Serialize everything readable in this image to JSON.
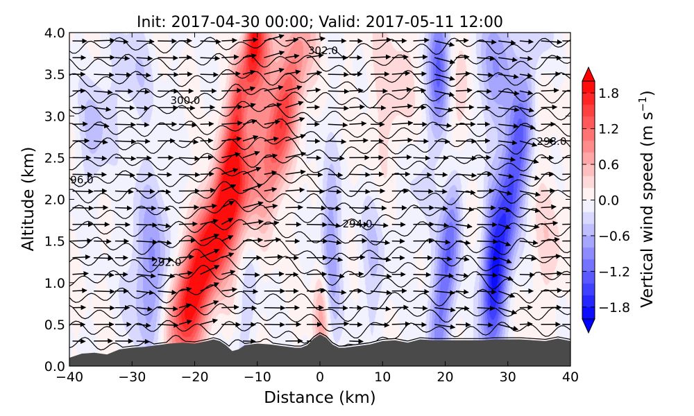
{
  "chart_data": {
    "type": "heatmap",
    "title": "Init: 2017-04-30 00:00; Valid: 2017-05-11 12:00",
    "xlabel": "Distance (km)",
    "ylabel": "Altitude (km)",
    "xlim": [
      -40,
      40
    ],
    "ylim": [
      0,
      4
    ],
    "xticks": [
      -40,
      -30,
      -20,
      -10,
      0,
      10,
      20,
      30,
      40
    ],
    "xtick_labels": [
      "−40",
      "−30",
      "−20",
      "−10",
      "0",
      "10",
      "20",
      "30",
      "40"
    ],
    "yticks": [
      0,
      0.5,
      1.0,
      1.5,
      2.0,
      2.5,
      3.0,
      3.5,
      4.0
    ],
    "ytick_labels": [
      "0.0",
      "0.5",
      "1.0",
      "1.5",
      "2.0",
      "2.5",
      "3.0",
      "3.5",
      "4.0"
    ],
    "colorbar": {
      "label_main": "Vertical wind speed (m s",
      "label_exp": "−1",
      "label_close": ")",
      "range": [
        -2.0,
        2.0
      ],
      "ticks": [
        -1.8,
        -1.2,
        -0.6,
        0.0,
        0.6,
        1.2,
        1.8
      ],
      "tick_labels": [
        "−1.8",
        "−1.2",
        "−0.6",
        "0.0",
        "0.6",
        "1.2",
        "1.8"
      ],
      "colors": {
        "negative": "#0000ff",
        "neutral": "#ffffff",
        "positive": "#ff0000"
      }
    },
    "terrain": {
      "color": "#4a4a4a",
      "x": [
        -40,
        -38,
        -36,
        -34,
        -32,
        -30,
        -28,
        -26,
        -24,
        -22,
        -20,
        -18,
        -17,
        -16,
        -15,
        -14,
        -13,
        -12,
        -10,
        -8,
        -6,
        -4,
        -3,
        -2,
        -1,
        0,
        1,
        2,
        3,
        4,
        6,
        8,
        10,
        12,
        14,
        16,
        18,
        20,
        22,
        24,
        26,
        28,
        30,
        32,
        34,
        36,
        38,
        40
      ],
      "h": [
        0.1,
        0.15,
        0.16,
        0.14,
        0.2,
        0.22,
        0.23,
        0.25,
        0.27,
        0.28,
        0.27,
        0.3,
        0.32,
        0.3,
        0.25,
        0.18,
        0.2,
        0.25,
        0.27,
        0.26,
        0.24,
        0.22,
        0.22,
        0.25,
        0.33,
        0.38,
        0.34,
        0.26,
        0.22,
        0.22,
        0.24,
        0.26,
        0.3,
        0.31,
        0.28,
        0.32,
        0.31,
        0.31,
        0.31,
        0.31,
        0.31,
        0.32,
        0.32,
        0.32,
        0.31,
        0.3,
        0.33,
        0.3
      ]
    },
    "vertical_wind_features": [
      {
        "x": -16.5,
        "z": 1.6,
        "sx": 2.6,
        "sz": 0.9,
        "w": 2.2,
        "tilt": 4.5
      },
      {
        "x": -12.0,
        "z": 3.5,
        "sx": 1.3,
        "sz": 0.8,
        "w": 2.0,
        "tilt": 2.0
      },
      {
        "x": -9.0,
        "z": 3.8,
        "sx": 1.5,
        "sz": 0.4,
        "w": 1.0,
        "tilt": 0
      },
      {
        "x": -6.5,
        "z": 2.8,
        "sx": 1.8,
        "sz": 1.0,
        "w": 1.4,
        "tilt": 3.0
      },
      {
        "x": -10.5,
        "z": 1.6,
        "sx": 1.3,
        "sz": 1.1,
        "w": -0.6,
        "tilt": 1.5
      },
      {
        "x": -12.0,
        "z": 3.7,
        "sx": 0.9,
        "sz": 0.7,
        "w": -0.9,
        "tilt": 0
      },
      {
        "x": -27.0,
        "z": 1.1,
        "sx": 2.3,
        "sz": 0.8,
        "w": -0.8,
        "tilt": 0
      },
      {
        "x": -36.0,
        "z": 2.8,
        "sx": 1.6,
        "sz": 0.5,
        "w": -0.5,
        "tilt": 0
      },
      {
        "x": -30.0,
        "z": 3.5,
        "sx": 2.5,
        "sz": 0.5,
        "w": -0.35,
        "tilt": 0
      },
      {
        "x": -21.0,
        "z": 0.6,
        "sx": 1.6,
        "sz": 0.4,
        "w": 0.8,
        "tilt": 0
      },
      {
        "x": 0.5,
        "z": 0.6,
        "sx": 1.0,
        "sz": 0.5,
        "w": 1.0,
        "tilt": 0
      },
      {
        "x": 1.5,
        "z": 1.2,
        "sx": 1.1,
        "sz": 0.8,
        "w": -1.0,
        "tilt": 0
      },
      {
        "x": 8.5,
        "z": 1.3,
        "sx": 1.6,
        "sz": 0.6,
        "w": -0.4,
        "tilt": 0
      },
      {
        "x": 20.5,
        "z": 1.3,
        "sx": 1.3,
        "sz": 1.0,
        "w": -1.3,
        "tilt": 1.5
      },
      {
        "x": 19.0,
        "z": 3.6,
        "sx": 1.2,
        "sz": 0.6,
        "w": -1.3,
        "tilt": 0
      },
      {
        "x": 30.5,
        "z": 2.1,
        "sx": 1.6,
        "sz": 1.4,
        "w": -1.5,
        "tilt": 2.0
      },
      {
        "x": 27.5,
        "z": 1.2,
        "sx": 1.2,
        "sz": 0.6,
        "w": -0.9,
        "tilt": 0
      },
      {
        "x": 29.0,
        "z": 3.6,
        "sx": 2.5,
        "sz": 0.6,
        "w": -0.8,
        "tilt": 0
      },
      {
        "x": 22.5,
        "z": 2.7,
        "sx": 1.2,
        "sz": 0.8,
        "w": 0.7,
        "tilt": 0
      },
      {
        "x": 33.0,
        "z": 3.4,
        "sx": 2.0,
        "sz": 0.5,
        "w": 0.6,
        "tilt": 0
      },
      {
        "x": 36.5,
        "z": 1.5,
        "sx": 2.0,
        "sz": 0.6,
        "w": 0.3,
        "tilt": 0
      },
      {
        "x": 12.0,
        "z": 3.2,
        "sx": 3.0,
        "sz": 0.8,
        "w": 0.35,
        "tilt": 0
      },
      {
        "x": 15.0,
        "z": 2.2,
        "sx": 2.0,
        "sz": 0.7,
        "w": -0.3,
        "tilt": 0
      }
    ],
    "isentropes": {
      "z0": 0.25,
      "dz": 0.2,
      "count": 19,
      "lee_dip": {
        "x": 4.0,
        "depth": 0.3
      }
    },
    "contour_labels": [
      {
        "text": "302.0",
        "x": 0.5,
        "z": 3.78
      },
      {
        "text": "300.0",
        "x": -21.5,
        "z": 3.18
      },
      {
        "text": "298.0",
        "x": 37.0,
        "z": 2.69
      },
      {
        "text": "96.0",
        "x": -38.0,
        "z": 2.23
      },
      {
        "text": "294.0",
        "x": 6.0,
        "z": 1.7
      },
      {
        "text": "292.0",
        "x": -24.5,
        "z": 1.24
      }
    ]
  }
}
